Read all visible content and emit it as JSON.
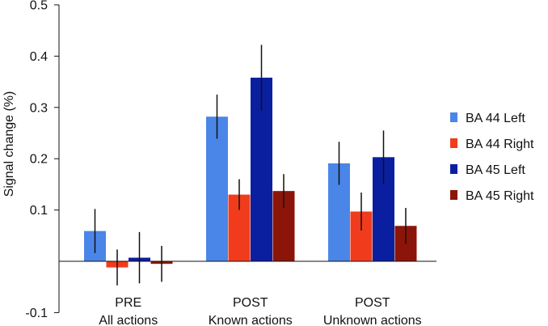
{
  "chart_data": {
    "type": "bar",
    "ylabel": "Signal change (%)",
    "ylim": [
      -0.1,
      0.5
    ],
    "yticks": [
      {
        "value": 0.5,
        "label": "0.5"
      },
      {
        "value": 0.4,
        "label": "0.4"
      },
      {
        "value": 0.3,
        "label": "0.3"
      },
      {
        "value": 0.2,
        "label": "0.2"
      },
      {
        "value": 0.1,
        "label": "0.1"
      },
      {
        "value": -0.1,
        "label": "-0.1"
      }
    ],
    "categories": [
      {
        "line1": "PRE",
        "line2": "All actions"
      },
      {
        "line1": "POST",
        "line2": "Known actions"
      },
      {
        "line1": "POST",
        "line2": "Unknown actions"
      }
    ],
    "series": [
      {
        "name": "BA 44 Left",
        "color": "#4a86e8",
        "values": [
          0.059,
          0.282,
          0.191
        ],
        "errors": [
          0.043,
          0.043,
          0.042
        ]
      },
      {
        "name": "BA 44 Right",
        "color": "#f03c1c",
        "values": [
          -0.012,
          0.13,
          0.097
        ],
        "errors": [
          0.035,
          0.03,
          0.037
        ]
      },
      {
        "name": "BA 45 Left",
        "color": "#0a1fa0",
        "values": [
          0.007,
          0.358,
          0.203
        ],
        "errors": [
          0.05,
          0.064,
          0.052
        ]
      },
      {
        "name": "BA 45 Right",
        "color": "#8b1508",
        "values": [
          -0.005,
          0.137,
          0.069
        ],
        "errors": [
          0.035,
          0.033,
          0.035
        ]
      }
    ],
    "legend_position": "right"
  }
}
